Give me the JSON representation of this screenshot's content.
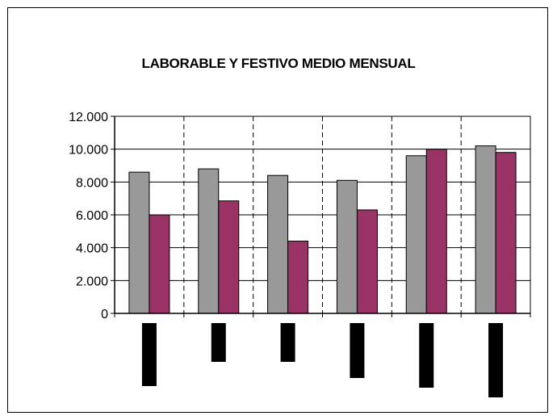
{
  "chart_data": {
    "type": "bar",
    "title": "LABORABLE Y FESTIVO MEDIO MENSUAL",
    "xlabel": "",
    "ylabel": "",
    "ylim": [
      0,
      12000
    ],
    "yticks": [
      0,
      2000,
      4000,
      6000,
      8000,
      10000,
      12000
    ],
    "ytick_labels": [
      "0",
      "2.000",
      "4.000",
      "6.000",
      "8.000",
      "10.000",
      "12.000"
    ],
    "categories": [
      "",
      "",
      "",
      "",
      "",
      ""
    ],
    "series": [
      {
        "values": [
          8600,
          8800,
          8400,
          8100,
          9600,
          10200
        ]
      },
      {
        "values": [
          6000,
          6850,
          4400,
          6300,
          10000,
          9800
        ]
      }
    ],
    "redacted_category_label_heights": [
      78,
      48,
      48,
      68,
      80,
      92
    ],
    "grid": "horizontal solid, vertical dashed between categories",
    "legend": "none",
    "colors": {
      "series1": "#999999",
      "series2": "#993366",
      "plot_bg": "#ffffff",
      "redaction": "#000000"
    }
  }
}
